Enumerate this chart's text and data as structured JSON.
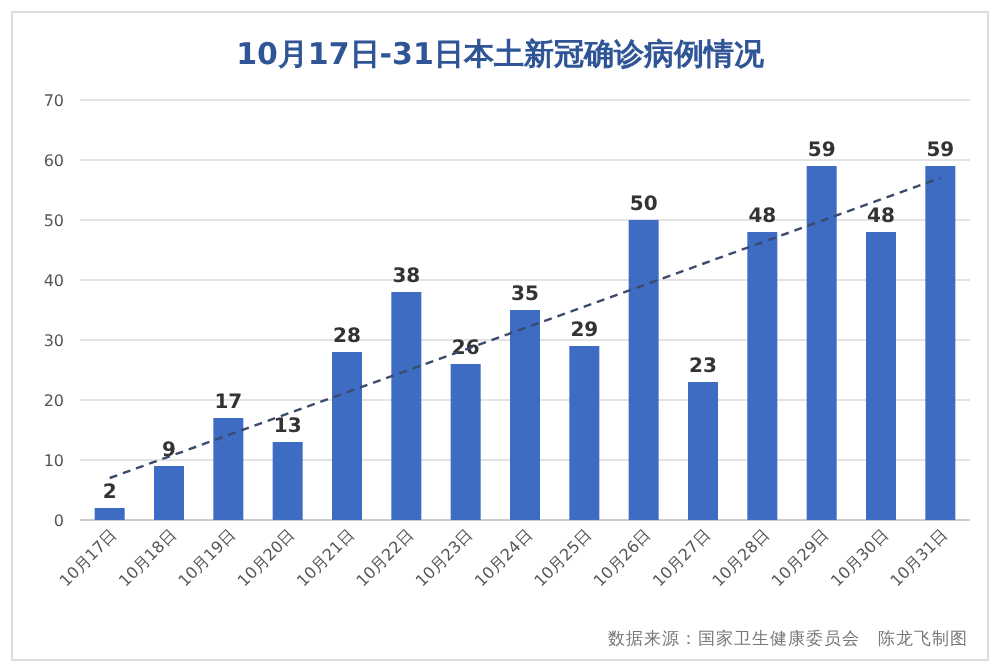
{
  "chart_data": {
    "type": "bar",
    "title": "10月17日-31日本土新冠确诊病例情况",
    "categories": [
      "10月17日",
      "10月18日",
      "10月19日",
      "10月20日",
      "10月21日",
      "10月22日",
      "10月23日",
      "10月24日",
      "10月25日",
      "10月26日",
      "10月27日",
      "10月28日",
      "10月29日",
      "10月30日",
      "10月31日"
    ],
    "series": [
      {
        "color": "#3e6cc2",
        "values": [
          2,
          9,
          17,
          13,
          28,
          38,
          26,
          35,
          29,
          50,
          23,
          48,
          59,
          48,
          59
        ],
        "value_labels": [
          "2",
          "9",
          "17",
          "13",
          "28",
          "38",
          "26",
          "35",
          "29",
          "50",
          "23",
          "48",
          "59",
          "48",
          "59"
        ]
      },
      {
        "type": "line",
        "color": "#3b4a6b",
        "line_style": "dashed",
        "x": [
          "10月17日",
          "10月31日"
        ],
        "values": [
          7,
          57
        ]
      }
    ],
    "ylim": [
      0,
      70
    ],
    "yticks": [
      0,
      10,
      20,
      30,
      40,
      50,
      60,
      70
    ],
    "grid": "y",
    "annotations": [
      "数据来源：国家卫生健康委员会　陈龙飞制图"
    ]
  }
}
